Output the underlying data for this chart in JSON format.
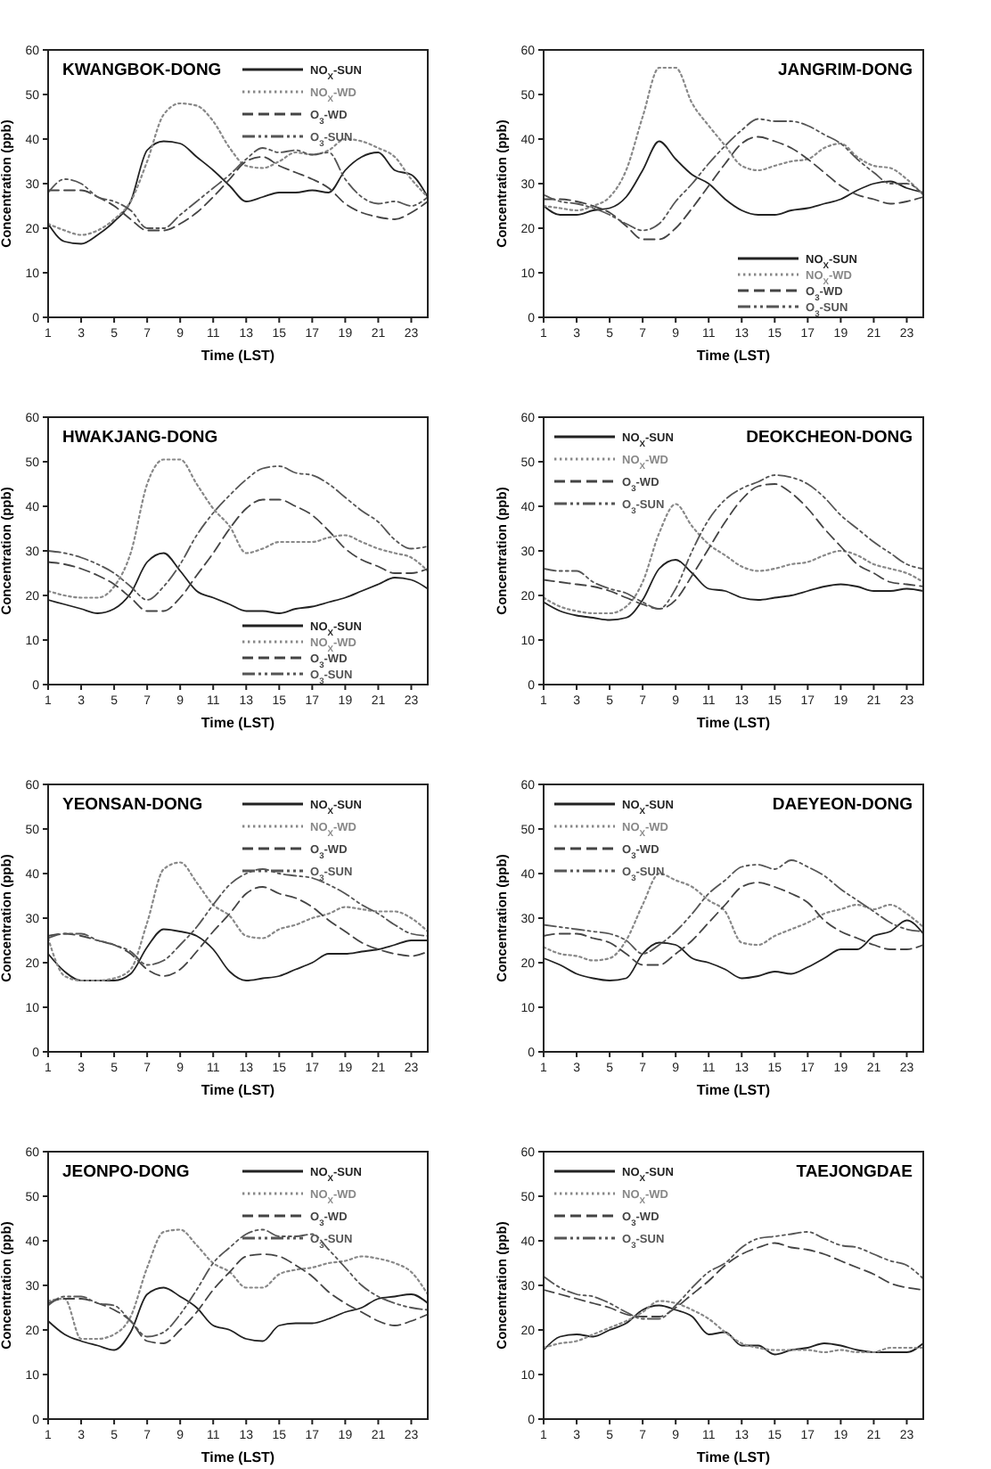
{
  "chart_data": [
    {
      "type": "line",
      "title": "KWANGBOK-DONG",
      "xlabel": "Time (LST)",
      "ylabel": "Concentration (ppb)",
      "x": [
        1,
        2,
        3,
        4,
        5,
        6,
        7,
        8,
        9,
        10,
        11,
        12,
        13,
        14,
        15,
        16,
        17,
        18,
        19,
        20,
        21,
        22,
        23,
        24
      ],
      "xlim": [
        1,
        24
      ],
      "xticks": [
        1,
        3,
        5,
        7,
        9,
        11,
        13,
        15,
        17,
        19,
        21,
        23
      ],
      "ylim": [
        0,
        60
      ],
      "yticks": [
        0,
        10,
        20,
        30,
        40,
        50,
        60
      ],
      "legend": "top right",
      "grid": false,
      "series": [
        {
          "name": "NO$_{X}$-SUN",
          "color": "#222222",
          "line_style": "solid",
          "values": [
            21,
            17,
            16.5,
            18.5,
            21.5,
            26,
            37.5,
            39.5,
            39,
            36,
            33,
            29.5,
            26,
            27,
            28,
            28,
            28.5,
            28,
            33,
            36,
            37,
            33,
            32,
            27
          ]
        },
        {
          "name": "NO$_{X}$-WD",
          "color": "#888888",
          "line_style": "dotted",
          "values": [
            21,
            19.5,
            18.5,
            19.5,
            22,
            26,
            35,
            45.5,
            48,
            47.5,
            44,
            38,
            34,
            33.5,
            35,
            37,
            36.5,
            37.5,
            40,
            39.5,
            38,
            36,
            31,
            27
          ]
        },
        {
          "name": "O$_{3}$-WD",
          "color": "#444444",
          "line_style": "dashed",
          "values": [
            28.5,
            28.5,
            28.5,
            27,
            25,
            22,
            19.5,
            19.5,
            21,
            23.5,
            27,
            31,
            35,
            36,
            34,
            32.5,
            31,
            29,
            25.5,
            23.5,
            22.5,
            22,
            23.5,
            26
          ]
        },
        {
          "name": "O$_{3}$-SUN",
          "color": "#555555",
          "line_style": "dashdot",
          "values": [
            28,
            31,
            30,
            27,
            26,
            24,
            20,
            20,
            23,
            26,
            29,
            32,
            35.5,
            38,
            37,
            37.5,
            36.5,
            37,
            31,
            27,
            25.5,
            26,
            25,
            27
          ]
        }
      ]
    },
    {
      "type": "line",
      "title": "JANGRIM-DONG",
      "xlabel": "Time (LST)",
      "ylabel": "Concentration (ppb)",
      "x": [
        1,
        2,
        3,
        4,
        5,
        6,
        7,
        8,
        9,
        10,
        11,
        12,
        13,
        14,
        15,
        16,
        17,
        18,
        19,
        20,
        21,
        22,
        23,
        24
      ],
      "xlim": [
        1,
        24
      ],
      "xticks": [
        1,
        3,
        5,
        7,
        9,
        11,
        13,
        15,
        17,
        19,
        21,
        23
      ],
      "ylim": [
        0,
        60
      ],
      "yticks": [
        0,
        10,
        20,
        30,
        40,
        50,
        60
      ],
      "legend": "bottom right",
      "grid": false,
      "series": [
        {
          "name": "NO$_{X}$-SUN",
          "color": "#222222",
          "line_style": "solid",
          "values": [
            25,
            23,
            23,
            24,
            24.5,
            27,
            33,
            39.5,
            35.5,
            32,
            30,
            26.5,
            24,
            23,
            23,
            24,
            24.5,
            25.5,
            26.5,
            28.5,
            30,
            30.5,
            29,
            28
          ]
        },
        {
          "name": "NO$_{X}$-WD",
          "color": "#888888",
          "line_style": "dotted",
          "values": [
            25,
            24.5,
            24,
            25,
            27,
            33,
            45,
            56,
            56,
            48,
            43,
            38.5,
            34,
            33,
            34,
            35,
            35.5,
            38,
            39,
            36,
            34,
            33.5,
            31,
            27.5
          ]
        },
        {
          "name": "O$_{3}$-WD",
          "color": "#444444",
          "line_style": "dashed",
          "values": [
            26.5,
            26.5,
            26,
            25,
            23.5,
            20.5,
            17.5,
            17.5,
            20,
            24.5,
            29.5,
            34.5,
            39,
            40.5,
            39.5,
            38,
            35.5,
            32.5,
            29.5,
            27.5,
            26.5,
            25.5,
            26,
            27
          ]
        },
        {
          "name": "O$_{3}$-SUN",
          "color": "#555555",
          "line_style": "dashdot",
          "values": [
            27.5,
            26,
            25.5,
            24.5,
            23,
            21,
            19.5,
            21,
            26,
            30,
            34.5,
            38.5,
            42,
            44.5,
            44,
            44,
            43,
            41,
            39,
            35.5,
            32.5,
            30,
            30,
            27.5
          ]
        }
      ]
    },
    {
      "type": "line",
      "title": "HWAKJANG-DONG",
      "xlabel": "Time (LST)",
      "ylabel": "Concentration (ppb)",
      "x": [
        1,
        2,
        3,
        4,
        5,
        6,
        7,
        8,
        9,
        10,
        11,
        12,
        13,
        14,
        15,
        16,
        17,
        18,
        19,
        20,
        21,
        22,
        23,
        24
      ],
      "xlim": [
        1,
        24
      ],
      "xticks": [
        1,
        3,
        5,
        7,
        9,
        11,
        13,
        15,
        17,
        19,
        21,
        23
      ],
      "ylim": [
        0,
        60
      ],
      "yticks": [
        0,
        10,
        20,
        30,
        40,
        50,
        60
      ],
      "legend": "bottom right",
      "grid": false,
      "series": [
        {
          "name": "NO$_{X}$-SUN",
          "color": "#222222",
          "line_style": "solid",
          "values": [
            19,
            18,
            17,
            16,
            17,
            20.5,
            27.5,
            29.5,
            25.5,
            21,
            19.5,
            18,
            16.5,
            16.5,
            16,
            17,
            17.5,
            18.5,
            19.5,
            21,
            22.5,
            24,
            23.5,
            21.5
          ]
        },
        {
          "name": "NO$_{X}$-WD",
          "color": "#888888",
          "line_style": "dotted",
          "values": [
            21,
            20,
            19.5,
            19.5,
            22,
            29.5,
            45,
            50.5,
            50.5,
            45,
            39.5,
            35.5,
            29.5,
            30.5,
            32,
            32,
            32,
            33,
            33.5,
            32,
            30.5,
            29.5,
            28.5,
            25.5
          ]
        },
        {
          "name": "O$_{3}$-WD",
          "color": "#444444",
          "line_style": "dashed",
          "values": [
            27.5,
            27,
            26,
            24.5,
            22.5,
            19.5,
            16.5,
            16.5,
            19.5,
            24.5,
            29.5,
            35,
            39.5,
            41.5,
            41.5,
            40,
            38,
            34.5,
            30.5,
            28,
            26.5,
            25,
            25,
            26
          ]
        },
        {
          "name": "O$_{3}$-SUN",
          "color": "#555555",
          "line_style": "dashdot",
          "values": [
            30,
            29.5,
            28.5,
            27,
            25,
            22,
            19,
            22,
            27,
            33.5,
            38.5,
            42.5,
            46,
            48.5,
            49,
            47.5,
            47,
            45,
            42,
            39,
            36.5,
            32.5,
            30.5,
            31
          ]
        }
      ]
    },
    {
      "type": "line",
      "title": "DEOKCHEON-DONG",
      "xlabel": "Time (LST)",
      "ylabel": "Concentration (ppb)",
      "x": [
        1,
        2,
        3,
        4,
        5,
        6,
        7,
        8,
        9,
        10,
        11,
        12,
        13,
        14,
        15,
        16,
        17,
        18,
        19,
        20,
        21,
        22,
        23,
        24
      ],
      "xlim": [
        1,
        24
      ],
      "xticks": [
        1,
        3,
        5,
        7,
        9,
        11,
        13,
        15,
        17,
        19,
        21,
        23
      ],
      "ylim": [
        0,
        60
      ],
      "yticks": [
        0,
        10,
        20,
        30,
        40,
        50,
        60
      ],
      "legend": "top left",
      "grid": false,
      "series": [
        {
          "name": "NO$_{X}$-SUN",
          "color": "#222222",
          "line_style": "solid",
          "values": [
            18.5,
            16.5,
            15.5,
            15,
            14.5,
            15,
            19,
            26,
            28,
            25,
            21.5,
            21,
            19.5,
            19,
            19.5,
            20,
            21,
            22,
            22.5,
            22,
            21,
            21,
            21.5,
            21
          ]
        },
        {
          "name": "NO$_{X}$-WD",
          "color": "#888888",
          "line_style": "dotted",
          "values": [
            19.5,
            17.5,
            16.5,
            16,
            16,
            17.5,
            23,
            34,
            40.5,
            35.5,
            31.5,
            29,
            26.5,
            25.5,
            26,
            27,
            27.5,
            29,
            30,
            29,
            27,
            26,
            25,
            23
          ]
        },
        {
          "name": "O$_{3}$-WD",
          "color": "#444444",
          "line_style": "dashed",
          "values": [
            23.5,
            23,
            22.5,
            22,
            21,
            19.5,
            18,
            17,
            19,
            24.5,
            30.5,
            36.5,
            41.5,
            44.5,
            45,
            43,
            39.5,
            35,
            31,
            27,
            25,
            23,
            22.5,
            22
          ]
        },
        {
          "name": "O$_{3}$-SUN",
          "color": "#555555",
          "line_style": "dashdot",
          "values": [
            26,
            25.5,
            25.5,
            23,
            21.5,
            20.5,
            18.5,
            17,
            21.5,
            30,
            37,
            41.5,
            44,
            45.5,
            47,
            46.5,
            45,
            42,
            38,
            35,
            32,
            29.5,
            27,
            26
          ]
        }
      ]
    },
    {
      "type": "line",
      "title": "YEONSAN-DONG",
      "xlabel": "Time (LST)",
      "ylabel": "Concentration (ppb)",
      "x": [
        1,
        2,
        3,
        4,
        5,
        6,
        7,
        8,
        9,
        10,
        11,
        12,
        13,
        14,
        15,
        16,
        17,
        18,
        19,
        20,
        21,
        22,
        23,
        24
      ],
      "xlim": [
        1,
        24
      ],
      "xticks": [
        1,
        3,
        5,
        7,
        9,
        11,
        13,
        15,
        17,
        19,
        21,
        23
      ],
      "ylim": [
        0,
        60
      ],
      "yticks": [
        0,
        10,
        20,
        30,
        40,
        50,
        60
      ],
      "legend": "top right",
      "grid": false,
      "series": [
        {
          "name": "NO$_{X}$-SUN",
          "color": "#222222",
          "line_style": "solid",
          "values": [
            22,
            18,
            16,
            16,
            16,
            17.5,
            23.5,
            27.5,
            27,
            26,
            23,
            18,
            16,
            16.5,
            17,
            18.5,
            20,
            22,
            22,
            22.5,
            23,
            24,
            25,
            25
          ]
        },
        {
          "name": "NO$_{X}$-WD",
          "color": "#888888",
          "line_style": "dotted",
          "values": [
            25.5,
            17,
            16,
            16,
            16.5,
            18.5,
            29,
            41,
            42.5,
            38,
            33,
            30.5,
            26,
            25.5,
            27.5,
            28.5,
            30,
            31,
            32.5,
            32,
            31.5,
            31.5,
            30,
            27
          ]
        },
        {
          "name": "O$_{3}$-WD",
          "color": "#444444",
          "line_style": "dashed",
          "values": [
            26,
            26.5,
            26,
            25,
            24,
            22,
            18.5,
            17,
            18.5,
            22.5,
            27,
            31,
            35.5,
            37,
            35.5,
            34.5,
            32.5,
            29.5,
            27,
            24.5,
            23,
            22,
            21.5,
            22.5
          ]
        },
        {
          "name": "O$_{3}$-SUN",
          "color": "#555555",
          "line_style": "dashdot",
          "values": [
            25.5,
            26.5,
            26.5,
            25,
            24,
            22.5,
            19.5,
            20.5,
            24,
            28,
            33,
            37.5,
            40,
            41,
            40,
            39.5,
            39,
            37.5,
            35.5,
            33,
            31,
            28.5,
            26.5,
            26
          ]
        }
      ]
    },
    {
      "type": "line",
      "title": "DAEYEON-DONG",
      "xlabel": "Time (LST)",
      "ylabel": "Concentration (ppb)",
      "x": [
        1,
        2,
        3,
        4,
        5,
        6,
        7,
        8,
        9,
        10,
        11,
        12,
        13,
        14,
        15,
        16,
        17,
        18,
        19,
        20,
        21,
        22,
        23,
        24
      ],
      "xlim": [
        1,
        24
      ],
      "xticks": [
        1,
        3,
        5,
        7,
        9,
        11,
        13,
        15,
        17,
        19,
        21,
        23
      ],
      "ylim": [
        0,
        60
      ],
      "yticks": [
        0,
        10,
        20,
        30,
        40,
        50,
        60
      ],
      "legend": "top left",
      "grid": false,
      "series": [
        {
          "name": "NO$_{X}$-SUN",
          "color": "#222222",
          "line_style": "solid",
          "values": [
            21,
            19.5,
            17.5,
            16.5,
            16,
            16.5,
            22,
            24.5,
            24,
            21,
            20,
            18.5,
            16.5,
            17,
            18,
            17.5,
            19,
            21,
            23,
            23,
            26,
            27,
            29.5,
            26.5
          ]
        },
        {
          "name": "NO$_{X}$-WD",
          "color": "#888888",
          "line_style": "dotted",
          "values": [
            23.5,
            22,
            21.5,
            20.5,
            21,
            25,
            33,
            40,
            38.5,
            37,
            34,
            31.5,
            24.5,
            24,
            26,
            27.5,
            29,
            31,
            32,
            33,
            32,
            33,
            31,
            28
          ]
        },
        {
          "name": "O$_{3}$-WD",
          "color": "#444444",
          "line_style": "dashed",
          "values": [
            26,
            26.5,
            26.5,
            25.5,
            24.5,
            22,
            19.5,
            19.5,
            22,
            25,
            29,
            33,
            37,
            38,
            37,
            35.5,
            33.5,
            29.5,
            27,
            25.5,
            24,
            23,
            23,
            24
          ]
        },
        {
          "name": "O$_{3}$-SUN",
          "color": "#555555",
          "line_style": "dashdot",
          "values": [
            28.5,
            28,
            27.5,
            27,
            26.5,
            25,
            22,
            24,
            27,
            31,
            35.5,
            38.5,
            41.5,
            42,
            41,
            43,
            41.5,
            39.5,
            36.5,
            34,
            31.5,
            29,
            27.5,
            27
          ]
        }
      ]
    },
    {
      "type": "line",
      "title": "JEONPO-DONG",
      "xlabel": "Time (LST)",
      "ylabel": "Concentration (ppb)",
      "x": [
        1,
        2,
        3,
        4,
        5,
        6,
        7,
        8,
        9,
        10,
        11,
        12,
        13,
        14,
        15,
        16,
        17,
        18,
        19,
        20,
        21,
        22,
        23,
        24
      ],
      "xlim": [
        1,
        24
      ],
      "xticks": [
        1,
        3,
        5,
        7,
        9,
        11,
        13,
        15,
        17,
        19,
        21,
        23
      ],
      "ylim": [
        0,
        60
      ],
      "yticks": [
        0,
        10,
        20,
        30,
        40,
        50,
        60
      ],
      "legend": "top right",
      "grid": false,
      "series": [
        {
          "name": "NO$_{X}$-SUN",
          "color": "#222222",
          "line_style": "solid",
          "values": [
            22,
            19,
            17.5,
            16.5,
            15.5,
            19.5,
            28,
            29.5,
            27.5,
            25,
            21,
            20,
            18,
            17.5,
            21,
            21.5,
            21.5,
            22.5,
            24,
            25,
            27,
            27.5,
            28,
            26
          ]
        },
        {
          "name": "NO$_{X}$-WD",
          "color": "#888888",
          "line_style": "dotted",
          "values": [
            26.5,
            27,
            18,
            18,
            19,
            23,
            34,
            42,
            42.5,
            39,
            35,
            33,
            29.5,
            29.5,
            32.5,
            33.5,
            34,
            35,
            35.5,
            36.5,
            36,
            35,
            33,
            28
          ]
        },
        {
          "name": "O$_{3}$-WD",
          "color": "#444444",
          "line_style": "dashed",
          "values": [
            26,
            27,
            27,
            26,
            24.5,
            22,
            17.5,
            17,
            20,
            24,
            29,
            33,
            36.5,
            37,
            36.5,
            34.5,
            32,
            28.5,
            26,
            24,
            22,
            21,
            22,
            23.5
          ]
        },
        {
          "name": "O$_{3}$-SUN",
          "color": "#555555",
          "line_style": "dashdot",
          "values": [
            25.5,
            27.5,
            27.5,
            26,
            25.5,
            22,
            18.5,
            19.5,
            23.5,
            29,
            35,
            38.5,
            41.5,
            42.5,
            41,
            41,
            41.5,
            38,
            34,
            30,
            27.5,
            26,
            25,
            24.5
          ]
        }
      ]
    },
    {
      "type": "line",
      "title": "TAEJONGDAE",
      "xlabel": "Time (LST)",
      "ylabel": "Concentration (ppb)",
      "x": [
        1,
        2,
        3,
        4,
        5,
        6,
        7,
        8,
        9,
        10,
        11,
        12,
        13,
        14,
        15,
        16,
        17,
        18,
        19,
        20,
        21,
        22,
        23,
        24
      ],
      "xlim": [
        1,
        24
      ],
      "xticks": [
        1,
        3,
        5,
        7,
        9,
        11,
        13,
        15,
        17,
        19,
        21,
        23
      ],
      "ylim": [
        0,
        60
      ],
      "yticks": [
        0,
        10,
        20,
        30,
        40,
        50,
        60
      ],
      "legend": "top left",
      "grid": false,
      "series": [
        {
          "name": "NO$_{X}$-SUN",
          "color": "#222222",
          "line_style": "solid",
          "values": [
            15.5,
            18.5,
            19,
            18.5,
            20,
            21.5,
            24.5,
            25.5,
            24.5,
            23,
            19,
            19.5,
            16.5,
            16.5,
            14.5,
            15.5,
            16,
            17,
            16.5,
            15.5,
            15,
            15,
            15,
            17
          ]
        },
        {
          "name": "NO$_{X}$-WD",
          "color": "#888888",
          "line_style": "dotted",
          "values": [
            16,
            17,
            17.5,
            19,
            20.5,
            22,
            24,
            26.5,
            26,
            24.5,
            22.5,
            19.5,
            17,
            16,
            15.5,
            15.5,
            15.5,
            15,
            15.5,
            15,
            15,
            16,
            16,
            16
          ]
        },
        {
          "name": "O$_{3}$-WD",
          "color": "#444444",
          "line_style": "dashed",
          "values": [
            29,
            28,
            27,
            26,
            25,
            23.5,
            23,
            23,
            25,
            28,
            31,
            34.5,
            37,
            38.5,
            39.5,
            38.5,
            38,
            37,
            35.5,
            34,
            32.5,
            30.5,
            29.5,
            29
          ]
        },
        {
          "name": "O$_{3}$-SUN",
          "color": "#555555",
          "line_style": "dashdot",
          "values": [
            32,
            29.5,
            28,
            27.5,
            26,
            24,
            22.5,
            22.5,
            25.5,
            29.5,
            33,
            35,
            38.5,
            40.5,
            41,
            41.5,
            42,
            40.5,
            39,
            38.5,
            37,
            35.5,
            34.5,
            31.5
          ]
        }
      ]
    }
  ]
}
